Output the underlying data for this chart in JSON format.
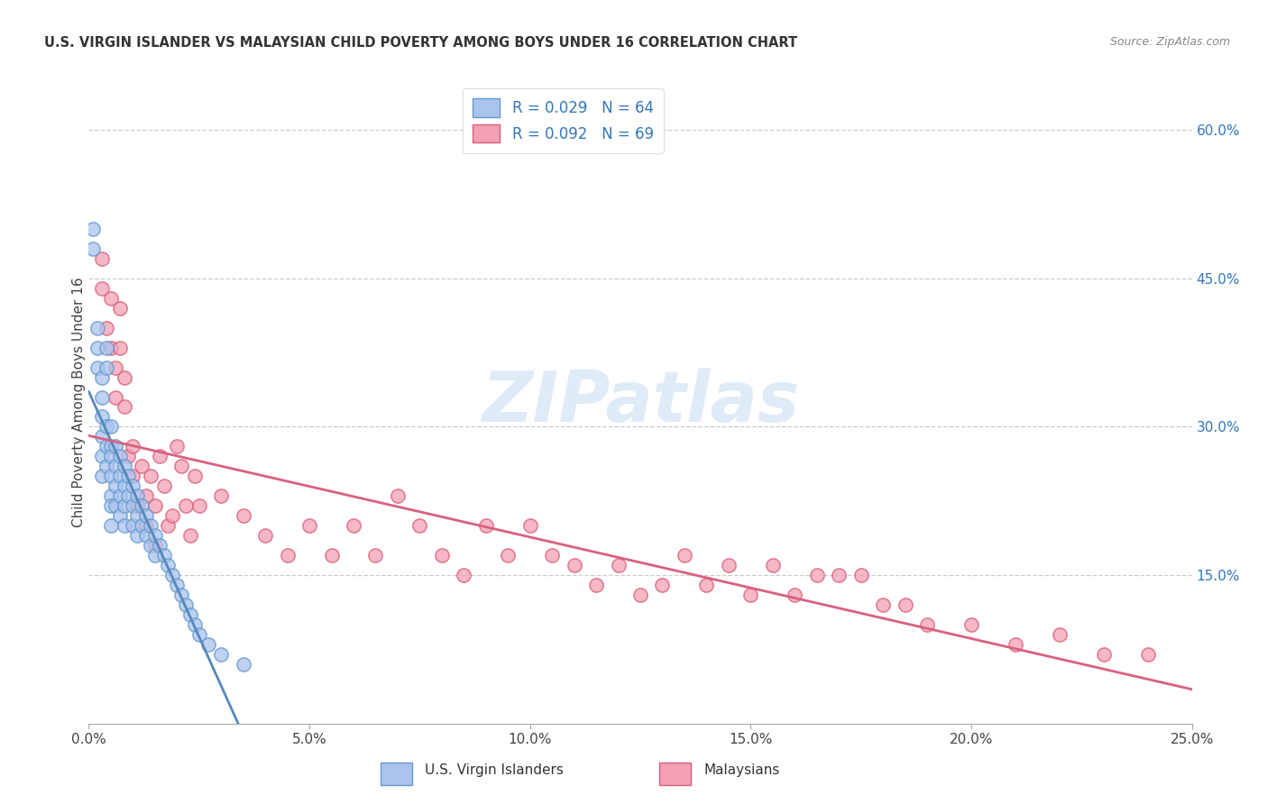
{
  "title": "U.S. VIRGIN ISLANDER VS MALAYSIAN CHILD POVERTY AMONG BOYS UNDER 16 CORRELATION CHART",
  "source": "Source: ZipAtlas.com",
  "ylabel": "Child Poverty Among Boys Under 16",
  "xlabel": "",
  "xlim": [
    0.0,
    0.25
  ],
  "ylim": [
    0.0,
    0.65
  ],
  "xticks": [
    0.0,
    0.05,
    0.1,
    0.15,
    0.2,
    0.25
  ],
  "yticks_right": [
    0.15,
    0.3,
    0.45,
    0.6
  ],
  "r_vi": 0.029,
  "n_vi": 64,
  "r_my": 0.092,
  "n_my": 69,
  "color_vi": "#aac4ee",
  "color_vi_edge": "#6699cc",
  "color_my": "#f4a0b5",
  "color_my_edge": "#d9607a",
  "color_vi_line": "#5588bb",
  "color_my_line": "#d96080",
  "color_text_blue": "#3377bb",
  "background": "#ffffff",
  "vi_x": [
    0.001,
    0.001,
    0.002,
    0.002,
    0.002,
    0.003,
    0.003,
    0.003,
    0.003,
    0.003,
    0.003,
    0.004,
    0.004,
    0.004,
    0.004,
    0.004,
    0.005,
    0.005,
    0.005,
    0.005,
    0.005,
    0.005,
    0.005,
    0.006,
    0.006,
    0.006,
    0.006,
    0.007,
    0.007,
    0.007,
    0.007,
    0.008,
    0.008,
    0.008,
    0.008,
    0.009,
    0.009,
    0.01,
    0.01,
    0.01,
    0.011,
    0.011,
    0.011,
    0.012,
    0.012,
    0.013,
    0.013,
    0.014,
    0.014,
    0.015,
    0.015,
    0.016,
    0.017,
    0.018,
    0.019,
    0.02,
    0.021,
    0.022,
    0.023,
    0.024,
    0.025,
    0.027,
    0.03,
    0.035
  ],
  "vi_y": [
    0.5,
    0.48,
    0.4,
    0.38,
    0.36,
    0.35,
    0.33,
    0.31,
    0.29,
    0.27,
    0.25,
    0.38,
    0.36,
    0.3,
    0.28,
    0.26,
    0.3,
    0.28,
    0.27,
    0.25,
    0.23,
    0.22,
    0.2,
    0.28,
    0.26,
    0.24,
    0.22,
    0.27,
    0.25,
    0.23,
    0.21,
    0.26,
    0.24,
    0.22,
    0.2,
    0.25,
    0.23,
    0.24,
    0.22,
    0.2,
    0.23,
    0.21,
    0.19,
    0.22,
    0.2,
    0.21,
    0.19,
    0.2,
    0.18,
    0.19,
    0.17,
    0.18,
    0.17,
    0.16,
    0.15,
    0.14,
    0.13,
    0.12,
    0.11,
    0.1,
    0.09,
    0.08,
    0.07,
    0.06
  ],
  "my_x": [
    0.003,
    0.003,
    0.004,
    0.005,
    0.005,
    0.006,
    0.006,
    0.007,
    0.007,
    0.008,
    0.008,
    0.009,
    0.01,
    0.01,
    0.011,
    0.012,
    0.013,
    0.013,
    0.014,
    0.015,
    0.015,
    0.016,
    0.017,
    0.018,
    0.019,
    0.02,
    0.021,
    0.022,
    0.023,
    0.024,
    0.025,
    0.03,
    0.035,
    0.04,
    0.045,
    0.05,
    0.055,
    0.06,
    0.065,
    0.07,
    0.075,
    0.08,
    0.085,
    0.09,
    0.095,
    0.1,
    0.105,
    0.11,
    0.115,
    0.12,
    0.125,
    0.13,
    0.135,
    0.14,
    0.145,
    0.15,
    0.155,
    0.16,
    0.165,
    0.17,
    0.175,
    0.18,
    0.185,
    0.19,
    0.2,
    0.21,
    0.22,
    0.23,
    0.24
  ],
  "my_y": [
    0.47,
    0.44,
    0.4,
    0.43,
    0.38,
    0.36,
    0.33,
    0.42,
    0.38,
    0.35,
    0.32,
    0.27,
    0.28,
    0.25,
    0.22,
    0.26,
    0.23,
    0.2,
    0.25,
    0.22,
    0.18,
    0.27,
    0.24,
    0.2,
    0.21,
    0.28,
    0.26,
    0.22,
    0.19,
    0.25,
    0.22,
    0.23,
    0.21,
    0.19,
    0.17,
    0.2,
    0.17,
    0.2,
    0.17,
    0.23,
    0.2,
    0.17,
    0.15,
    0.2,
    0.17,
    0.2,
    0.17,
    0.16,
    0.14,
    0.16,
    0.13,
    0.14,
    0.17,
    0.14,
    0.16,
    0.13,
    0.16,
    0.13,
    0.15,
    0.15,
    0.15,
    0.12,
    0.12,
    0.1,
    0.1,
    0.08,
    0.09,
    0.07,
    0.07
  ]
}
